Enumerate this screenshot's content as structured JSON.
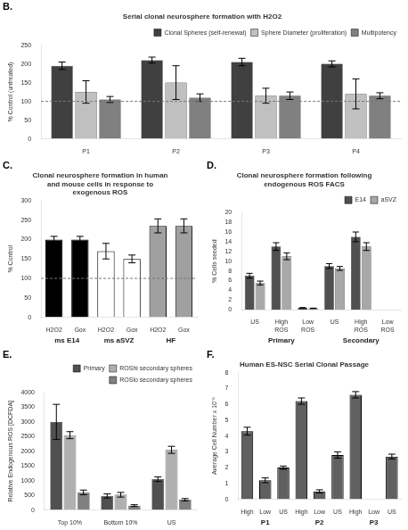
{
  "chart_data": [
    {
      "type": "bar",
      "title": "Serial clonal neurosphere formation with H2O2",
      "annotations": [
        "B."
      ],
      "ylabel": "% Control (untreated)",
      "categories": [
        "P1",
        "P2",
        "P3",
        "P4"
      ],
      "series": [
        {
          "name": "Clonal Spheres\n(self-renewal)",
          "color": "#404040",
          "values": [
            195,
            210,
            205,
            200
          ],
          "errors": [
            10,
            8,
            10,
            8
          ]
        },
        {
          "name": "Sphere Diameter\n(proliferation)",
          "color": "#c0c0c0",
          "values": [
            125,
            150,
            115,
            120
          ],
          "errors": [
            30,
            45,
            20,
            40
          ]
        },
        {
          "name": "Multipotency",
          "color": "#808080",
          "values": [
            105,
            110,
            115,
            115
          ],
          "errors": [
            8,
            10,
            10,
            8
          ]
        }
      ],
      "ylim": [
        0,
        250
      ],
      "yticks": [
        0,
        50,
        100,
        150,
        200,
        250
      ],
      "hline": 100,
      "legend": "upper right",
      "grid": false
    },
    {
      "type": "bar",
      "title": "Clonal neurosphere formation in human\nand mouse cells in response to\nexogenous ROS",
      "annotations": [
        "C."
      ],
      "ylabel": "% Control",
      "categories": [
        "H2O2",
        "Gox",
        "H2O2",
        "Gox",
        "H2O2",
        "Gox"
      ],
      "group_labels": [
        "ms E14",
        "ms aSVZ",
        "HF"
      ],
      "values": [
        200,
        200,
        170,
        150,
        235,
        235
      ],
      "errors": [
        8,
        8,
        20,
        10,
        18,
        18
      ],
      "colors": [
        "#000000",
        "#000000",
        "#ffffff",
        "#ffffff",
        "#a0a0a0",
        "#a0a0a0"
      ],
      "ylim": [
        0,
        300
      ],
      "yticks": [
        0,
        50,
        100,
        150,
        200,
        250,
        300
      ],
      "hline": 100,
      "grid": false
    },
    {
      "type": "bar",
      "title": "Clonal neurosphere formation following\nendogenous ROS FACS",
      "annotations": [
        "D."
      ],
      "ylabel": "% Cells seeded",
      "categories": [
        "US",
        "High\nROS",
        "Low\nROS",
        "US",
        "High\nROS",
        "Low\nROS"
      ],
      "group_labels": [
        "Primary",
        "Secondary"
      ],
      "series": [
        {
          "name": "E14",
          "color": "#505050",
          "values": [
            7.0,
            13.0,
            0.4,
            9.0,
            15.0,
            0.0
          ],
          "errors": [
            0.5,
            0.8,
            0.05,
            0.5,
            1.0,
            0.0
          ]
        },
        {
          "name": "aSVZ",
          "color": "#a8a8a8",
          "values": [
            5.5,
            11.0,
            0.3,
            8.5,
            13.0,
            0.0
          ],
          "errors": [
            0.4,
            0.7,
            0.05,
            0.4,
            0.8,
            0.0
          ]
        }
      ],
      "ylim": [
        0,
        20
      ],
      "yticks": [
        0,
        2,
        4,
        6,
        8,
        10,
        12,
        14,
        16,
        18,
        20
      ],
      "legend": "upper right",
      "grid": false
    },
    {
      "type": "bar",
      "annotations": [
        "E."
      ],
      "ylabel": "Relative Endogenous ROS [DCFDA]",
      "categories": [
        "Top 10%",
        "Bottom 10%",
        "US"
      ],
      "series": [
        {
          "name": "Primary",
          "color": "#505050",
          "values": [
            3000,
            480,
            1050
          ],
          "errors": [
            600,
            70,
            80
          ]
        },
        {
          "name": "ROShi secondary spheres",
          "color": "#b0b0b0",
          "values": [
            2550,
            520,
            2050
          ],
          "errors": [
            120,
            80,
            120
          ]
        },
        {
          "name": "ROSlo secondary spheres",
          "color": "#808080",
          "values": [
            600,
            150,
            350
          ],
          "errors": [
            80,
            30,
            40
          ]
        }
      ],
      "ylim": [
        0,
        4000
      ],
      "yticks": [
        0,
        500,
        1000,
        1500,
        2000,
        2500,
        3000,
        3500,
        4000
      ],
      "legend": "upper right",
      "grid": false
    },
    {
      "type": "bar",
      "title": "Human ES-NSC Serial Clonal Passage",
      "annotations": [
        "F."
      ],
      "ylabel": "Average Cell Number x 10⁻⁵",
      "categories": [
        "High",
        "Low",
        "US",
        "High",
        "Low",
        "US",
        "High",
        "Low",
        "US"
      ],
      "group_labels": [
        "P1",
        "P2",
        "P3"
      ],
      "values": [
        4.3,
        1.2,
        2.0,
        6.2,
        0.5,
        2.8,
        6.6,
        0.0,
        2.7
      ],
      "errors": [
        0.25,
        0.15,
        0.1,
        0.2,
        0.1,
        0.2,
        0.2,
        0.0,
        0.15
      ],
      "color": "#606060",
      "ylim": [
        0,
        8
      ],
      "yticks": [
        0,
        1,
        2,
        3,
        4,
        5,
        6,
        7,
        8
      ],
      "grid": false
    }
  ]
}
